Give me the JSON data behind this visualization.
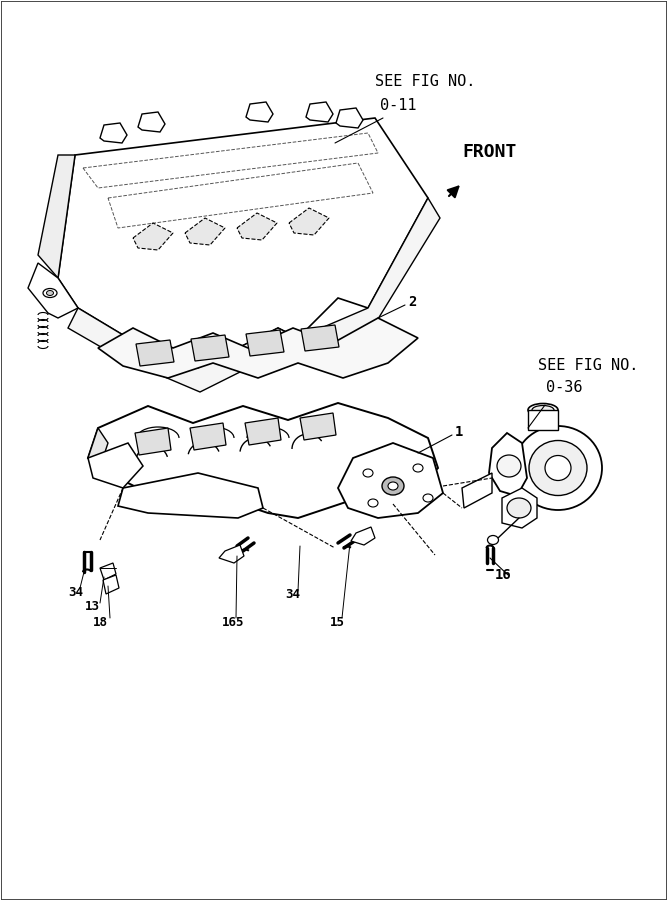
{
  "background_color": "#ffffff",
  "line_color": "#000000",
  "dashed_line_color": "#555555",
  "fig_width": 6.67,
  "fig_height": 9.0,
  "dpi": 100,
  "labels": {
    "see_fig_top_line1": "SEE FIG NO.",
    "see_fig_top_line2": "0-11",
    "front": "FRONT",
    "see_fig_right_line1": "SEE FIG NO.",
    "see_fig_right_line2": "0-36",
    "num_1": "1",
    "num_2": "2",
    "num_13": "13",
    "num_15": "15",
    "num_16": "16",
    "num_18": "18",
    "num_34_left": "34",
    "num_34_right": "34",
    "num_165": "165"
  },
  "font_family": "monospace"
}
